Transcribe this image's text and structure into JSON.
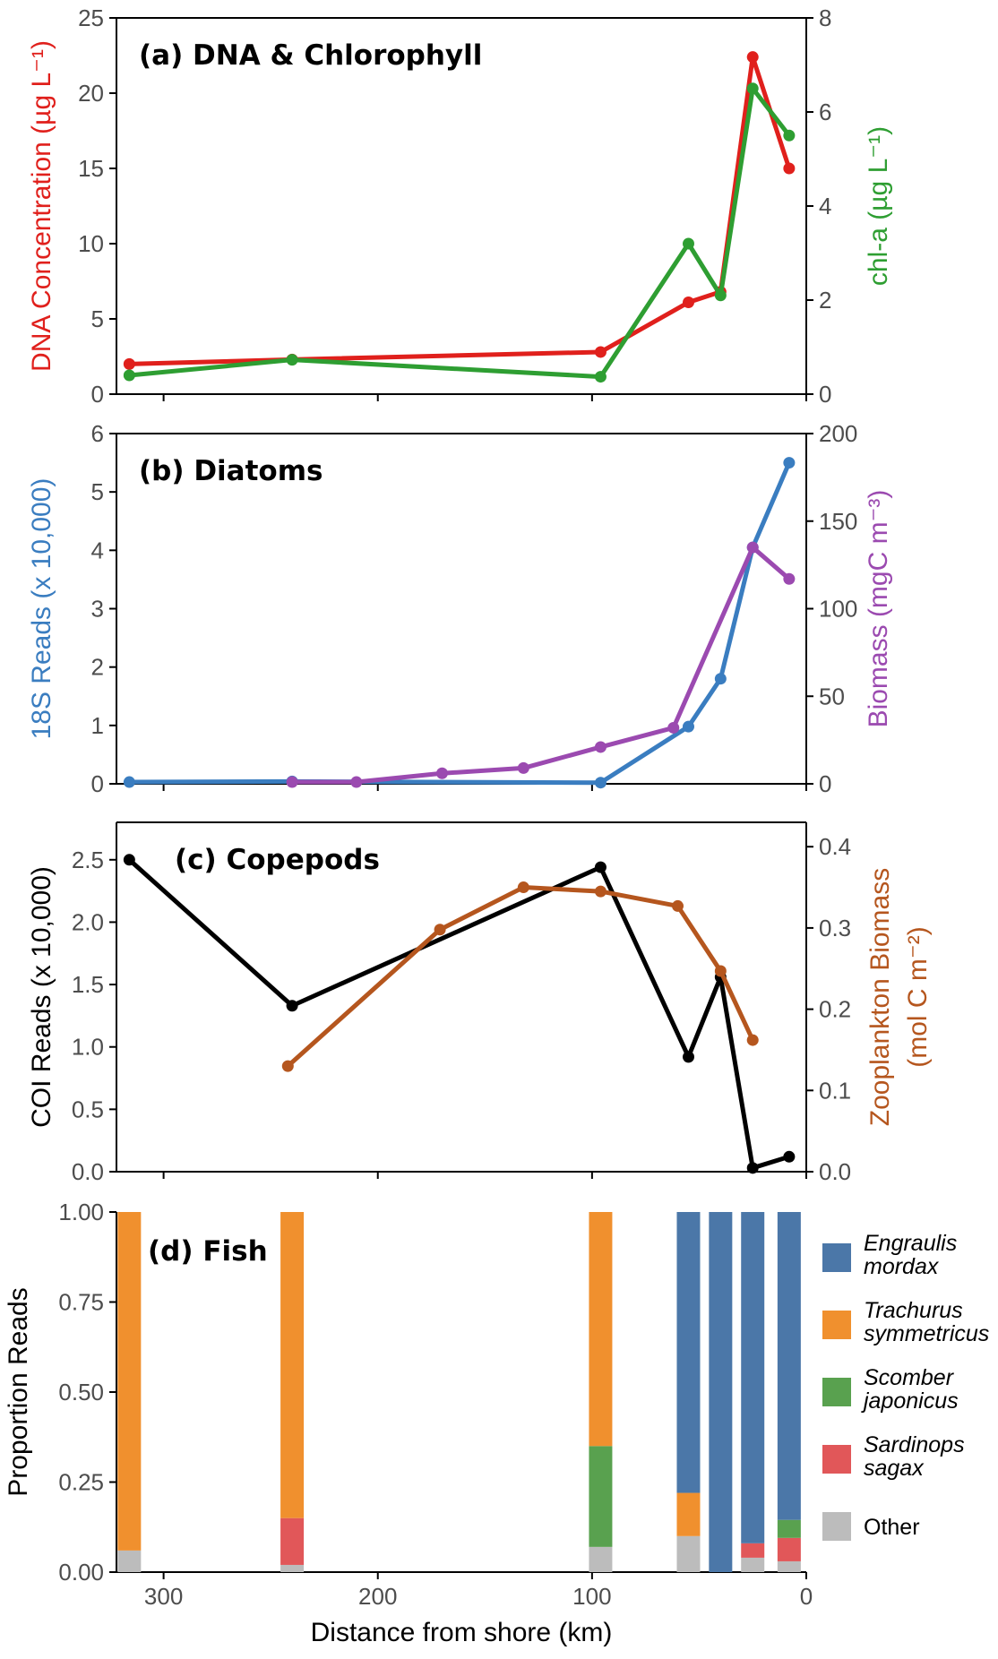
{
  "xlabel": "Distance from shore (km)",
  "x_ticks": [
    "300",
    "200",
    "100",
    "0"
  ],
  "x_tick_values": [
    300,
    200,
    100,
    0
  ],
  "xlim": [
    322,
    0
  ],
  "colors": {
    "red": "#e0201c",
    "green": "#2e9e32",
    "blue": "#3a7dc0",
    "purple": "#9b4ab0",
    "black": "#000000",
    "brown": "#b5561e",
    "tick": "#4d4d4d"
  },
  "chart_data": [
    {
      "type": "line",
      "title": "(a) DNA & Chlorophyll",
      "ylabel_left": "DNA Concentration  (µg L⁻¹)",
      "ylabel_right": "chl-a  (µg L⁻¹)",
      "ylim_left": [
        0,
        25
      ],
      "ylim_right": [
        0,
        8
      ],
      "y_ticks_left": [
        0,
        5,
        10,
        15,
        20,
        25
      ],
      "y_ticks_right": [
        0,
        2,
        4,
        6,
        8
      ],
      "series": [
        {
          "axis": "left",
          "color": "red",
          "x": [
            316,
            240,
            96,
            55,
            40,
            25,
            8
          ],
          "values": [
            2.0,
            2.3,
            2.8,
            6.1,
            6.8,
            22.4,
            15.0
          ]
        },
        {
          "axis": "right",
          "color": "green",
          "x": [
            316,
            240,
            96,
            55,
            40,
            25,
            8
          ],
          "values": [
            0.4,
            0.73,
            0.37,
            3.2,
            2.1,
            6.5,
            5.5
          ]
        }
      ]
    },
    {
      "type": "line",
      "title": "(b) Diatoms",
      "ylabel_left": "18S Reads (x 10,000)",
      "ylabel_right": "Biomass (mgC m⁻³)",
      "ylim_left": [
        0,
        6
      ],
      "ylim_right": [
        0,
        200
      ],
      "y_ticks_left": [
        0,
        1,
        2,
        3,
        4,
        5,
        6
      ],
      "y_ticks_right": [
        0,
        50,
        100,
        150,
        200
      ],
      "series": [
        {
          "axis": "left",
          "color": "blue",
          "x": [
            316,
            240,
            96,
            55,
            40,
            25,
            8
          ],
          "values": [
            0.03,
            0.04,
            0.02,
            0.98,
            1.8,
            4.05,
            5.5
          ]
        },
        {
          "axis": "right",
          "color": "purple",
          "x": [
            240,
            210,
            170,
            132,
            96,
            62,
            25,
            8
          ],
          "values": [
            1,
            1,
            6,
            9,
            21,
            32,
            135,
            117
          ]
        }
      ]
    },
    {
      "type": "line",
      "title": "(c) Copepods",
      "ylabel_left": "COI Reads (x 10,000)",
      "ylabel_right": "Zooplankton Biomass",
      "ylabel_right_units": "(mol C m⁻²)",
      "ylim_left": [
        0,
        2.8
      ],
      "ylim_right": [
        0,
        0.43
      ],
      "y_ticks_left": [
        "0.0",
        "0.5",
        "1.0",
        "1.5",
        "2.0",
        "2.5"
      ],
      "y_tick_values_left": [
        0,
        0.5,
        1.0,
        1.5,
        2.0,
        2.5
      ],
      "y_ticks_right": [
        "0.0",
        "0.1",
        "0.2",
        "0.3",
        "0.4"
      ],
      "y_tick_values_right": [
        0,
        0.1,
        0.2,
        0.3,
        0.4
      ],
      "series": [
        {
          "axis": "left",
          "color": "black",
          "x": [
            316,
            240,
            96,
            55,
            40,
            25,
            8
          ],
          "values": [
            2.5,
            1.33,
            2.44,
            0.92,
            1.56,
            0.03,
            0.12
          ]
        },
        {
          "axis": "right",
          "color": "brown",
          "x": [
            242,
            171,
            132,
            96,
            60,
            40,
            25
          ],
          "values": [
            0.13,
            0.298,
            0.35,
            0.345,
            0.327,
            0.247,
            0.162
          ]
        }
      ]
    },
    {
      "type": "bar",
      "stacked": true,
      "title": "(d) Fish",
      "ylabel": "Proportion Reads",
      "ylim": [
        0,
        1
      ],
      "y_ticks": [
        "0.00",
        "0.25",
        "0.50",
        "0.75",
        "1.00"
      ],
      "y_tick_values": [
        0,
        0.25,
        0.5,
        0.75,
        1.0
      ],
      "legend_position": "right",
      "legend": [
        {
          "label_1": "Engraulis",
          "label_2": "mordax",
          "color": "#4b77a8",
          "italic": true
        },
        {
          "label_1": "Trachurus",
          "label_2": "symmetricus",
          "color": "#f0902e",
          "italic": true
        },
        {
          "label_1": "Scomber",
          "label_2": "japonicus",
          "color": "#59a14f",
          "italic": true
        },
        {
          "label_1": "Sardinops",
          "label_2": "sagax",
          "color": "#e15759",
          "italic": true
        },
        {
          "label_1": "Other",
          "label_2": "",
          "color": "#bcbcbc",
          "italic": false
        }
      ],
      "stack_order": [
        "Other",
        "Sardinops sagax",
        "Scomber japonicus",
        "Trachurus symmetricus",
        "Engraulis mordax"
      ],
      "bars": [
        {
          "x": 316,
          "Other": 0.06,
          "Sardinops sagax": 0,
          "Scomber japonicus": 0,
          "Trachurus symmetricus": 0.94,
          "Engraulis mordax": 0
        },
        {
          "x": 240,
          "Other": 0.02,
          "Sardinops sagax": 0.13,
          "Scomber japonicus": 0,
          "Trachurus symmetricus": 0.85,
          "Engraulis mordax": 0
        },
        {
          "x": 96,
          "Other": 0.07,
          "Sardinops sagax": 0,
          "Scomber japonicus": 0.28,
          "Trachurus symmetricus": 0.65,
          "Engraulis mordax": 0
        },
        {
          "x": 55,
          "Other": 0.1,
          "Sardinops sagax": 0,
          "Scomber japonicus": 0,
          "Trachurus symmetricus": 0.12,
          "Engraulis mordax": 0.78
        },
        {
          "x": 40,
          "Other": 0,
          "Sardinops sagax": 0,
          "Scomber japonicus": 0,
          "Trachurus symmetricus": 0,
          "Engraulis mordax": 1.0
        },
        {
          "x": 25,
          "Other": 0.04,
          "Sardinops sagax": 0.04,
          "Scomber japonicus": 0,
          "Trachurus symmetricus": 0,
          "Engraulis mordax": 0.92
        },
        {
          "x": 8,
          "Other": 0.03,
          "Sardinops sagax": 0.065,
          "Scomber japonicus": 0.05,
          "Trachurus symmetricus": 0,
          "Engraulis mordax": 0.855
        }
      ]
    }
  ]
}
